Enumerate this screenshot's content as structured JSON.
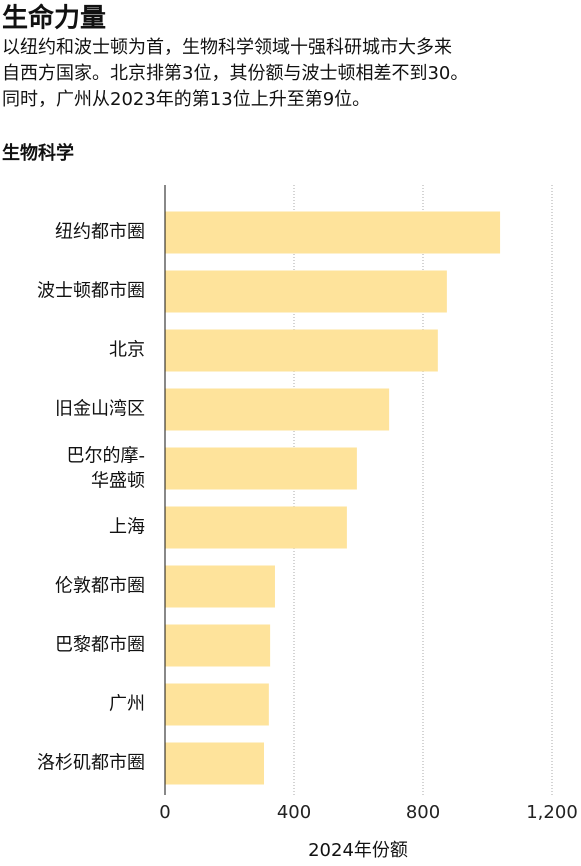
{
  "chart_data": {
    "type": "bar",
    "orientation": "horizontal",
    "title": "生命力量",
    "subtitle": [
      "以纽约和波士顿为首，生物科学领域十强科研城市大多来",
      "自西方国家。北京排第3位，其份额与波士顿相差不到30。",
      "同时，广州从2023年的第13位上升至第9位。"
    ],
    "section_label": "生物科学",
    "categories": [
      "纽约都市圈",
      "波士顿都市圈",
      "北京",
      "旧金山湾区",
      "巴尔的摩-华盛顿",
      "上海",
      "伦敦都市圈",
      "巴黎都市圈",
      "广州",
      "洛杉矶都市圈"
    ],
    "values": [
      1039,
      874,
      846,
      695,
      595,
      564,
      341,
      326,
      322,
      307
    ],
    "color": "#fee39b",
    "xlim": [
      0,
      1200
    ],
    "xticks": [
      0,
      400,
      800,
      {
        "value": 1200,
        "label": "1,200"
      }
    ],
    "xlabel": "2024年份额",
    "grid": true
  }
}
